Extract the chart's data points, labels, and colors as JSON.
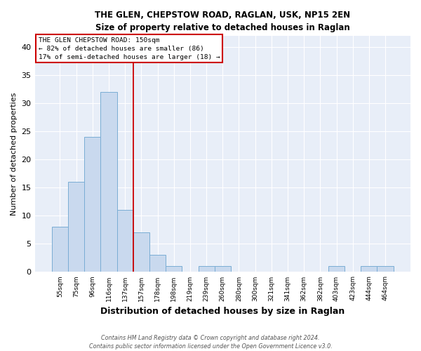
{
  "title": "THE GLEN, CHEPSTOW ROAD, RAGLAN, USK, NP15 2EN",
  "subtitle": "Size of property relative to detached houses in Raglan",
  "xlabel": "Distribution of detached houses by size in Raglan",
  "ylabel": "Number of detached properties",
  "categories": [
    "55sqm",
    "75sqm",
    "96sqm",
    "116sqm",
    "137sqm",
    "157sqm",
    "178sqm",
    "198sqm",
    "219sqm",
    "239sqm",
    "260sqm",
    "280sqm",
    "300sqm",
    "321sqm",
    "341sqm",
    "362sqm",
    "382sqm",
    "403sqm",
    "423sqm",
    "444sqm",
    "464sqm"
  ],
  "values": [
    8,
    16,
    24,
    32,
    11,
    7,
    3,
    1,
    0,
    1,
    1,
    0,
    0,
    0,
    0,
    0,
    0,
    1,
    0,
    1,
    1
  ],
  "bar_color": "#c9d9ee",
  "bar_edge_color": "#7aadd4",
  "vline_x": 4.5,
  "vline_color": "#cc0000",
  "annotation_line1": "THE GLEN CHEPSTOW ROAD: 150sqm",
  "annotation_line2": "← 82% of detached houses are smaller (86)",
  "annotation_line3": "17% of semi-detached houses are larger (18) →",
  "annotation_box_color": "#ffffff",
  "annotation_box_edge_color": "#cc0000",
  "ylim": [
    0,
    42
  ],
  "yticks": [
    0,
    5,
    10,
    15,
    20,
    25,
    30,
    35,
    40
  ],
  "footer1": "Contains HM Land Registry data © Crown copyright and database right 2024.",
  "footer2": "Contains public sector information licensed under the Open Government Licence v3.0.",
  "bg_color": "#e8eef8",
  "fig_bg_color": "#ffffff",
  "grid_color": "#ffffff"
}
